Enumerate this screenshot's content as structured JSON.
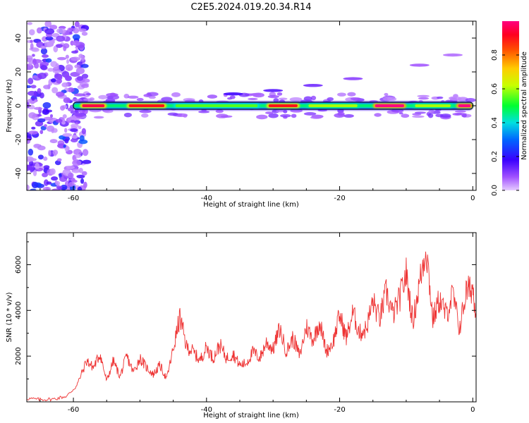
{
  "figure": {
    "title": "C2E5.2024.019.20.34.R14"
  },
  "chart_data": [
    {
      "type": "heatmap",
      "title": "",
      "xlabel": "Height of straight line (km)",
      "ylabel": "Frequency (Hz)",
      "xlim": [
        -67,
        0.5
      ],
      "ylim": [
        -50,
        50
      ],
      "xticks": [
        -60,
        -40,
        -20,
        0
      ],
      "yticks": [
        40,
        20,
        0,
        -20,
        -40
      ],
      "colorbar": {
        "label": "Normalized spectral amplitude",
        "range": [
          0.0,
          1.0
        ],
        "ticks": [
          0.0,
          0.2,
          0.4,
          0.6,
          0.8
        ],
        "colormap": [
          "#e6ccff",
          "#8a2be2",
          "#0000ff",
          "#00d4ff",
          "#00ff00",
          "#ffff00",
          "#ff8000",
          "#ff0000",
          "#ff0080"
        ]
      },
      "ridge": {
        "frequency_hz": 0,
        "x_start_km": -60,
        "x_end_km": 0,
        "segments": [
          {
            "x": [
              -59,
              -55
            ],
            "amp": 0.95
          },
          {
            "x": [
              -52,
              -46
            ],
            "amp": 0.9
          },
          {
            "x": [
              -45,
              -32
            ],
            "amp": 0.55
          },
          {
            "x": [
              -31,
              -26
            ],
            "amp": 0.9
          },
          {
            "x": [
              -25,
              -17
            ],
            "amp": 0.6
          },
          {
            "x": [
              -15,
              -10
            ],
            "amp": 1.0
          },
          {
            "x": [
              -9,
              -3
            ],
            "amp": 0.6
          },
          {
            "x": [
              -2.5,
              0
            ],
            "amp": 1.0
          }
        ]
      },
      "harmonic_trace": [
        {
          "x": -36,
          "f": 7,
          "amp": 0.35
        },
        {
          "x": -30,
          "f": 9,
          "amp": 0.3
        },
        {
          "x": -24,
          "f": 12,
          "amp": 0.25
        },
        {
          "x": -18,
          "f": 16,
          "amp": 0.2
        },
        {
          "x": -8,
          "f": 24,
          "amp": 0.15
        },
        {
          "x": -3,
          "f": 30,
          "amp": 0.12
        }
      ]
    },
    {
      "type": "line",
      "title": "",
      "xlabel": "Height of straight line (km)",
      "ylabel": "SNR (10 * v/v)",
      "xlim": [
        -67,
        0.5
      ],
      "ylim": [
        0,
        7400
      ],
      "xticks": [
        -60,
        -40,
        -20,
        0
      ],
      "yticks": [
        2000,
        4000,
        6000
      ],
      "color": "#ee3333",
      "series": [
        {
          "x": [
            -67,
            -65,
            -63,
            -61,
            -59.5,
            -58,
            -57,
            -56,
            -55,
            -54,
            -53,
            -52,
            -51,
            -50,
            -49,
            -48,
            -47,
            -46,
            -45,
            -44,
            -43,
            -42,
            -41,
            -40,
            -39,
            -38,
            -37,
            -36,
            -35,
            -34,
            -33,
            -32,
            -31,
            -30,
            -29,
            -28,
            -27,
            -26,
            -25,
            -24,
            -23,
            -22,
            -21,
            -20,
            -19,
            -18,
            -17,
            -16,
            -15,
            -14,
            -13,
            -12,
            -11,
            -10,
            -9,
            -8,
            -7,
            -6,
            -5,
            -4,
            -3,
            -2,
            -1,
            0,
            0.5
          ],
          "values": [
            150,
            100,
            120,
            250,
            700,
            1800,
            1500,
            2100,
            900,
            1800,
            1100,
            2000,
            1300,
            1900,
            1500,
            1200,
            1600,
            1000,
            2300,
            3700,
            2400,
            2200,
            1800,
            2400,
            1900,
            2500,
            1900,
            2100,
            1600,
            1700,
            2200,
            1900,
            2600,
            2300,
            3200,
            2200,
            2800,
            2000,
            3300,
            2700,
            3500,
            2200,
            2600,
            3800,
            2800,
            3900,
            3000,
            3200,
            4400,
            3600,
            4800,
            3800,
            4500,
            5600,
            3500,
            5200,
            6800,
            3600,
            4500,
            3800,
            4700,
            3200,
            4800,
            5000,
            3900
          ]
        }
      ]
    }
  ]
}
